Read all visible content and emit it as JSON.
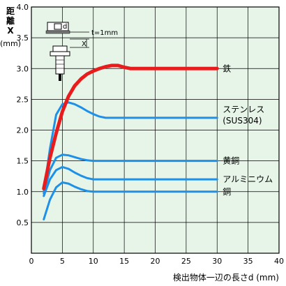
{
  "chart_data": {
    "type": "line",
    "xlabel": "検出物体一辺の長さd (mm)",
    "ylabel": "距離X (mm)",
    "xlim": [
      0,
      40
    ],
    "ylim": [
      0,
      4.0
    ],
    "x_ticks": [
      "0",
      "5",
      "10",
      "15",
      "20",
      "25",
      "30",
      "35",
      "40"
    ],
    "y_ticks": [
      "0.5",
      "1.0",
      "1.5",
      "2.0",
      "2.5",
      "3.0",
      "3.5",
      "4.0"
    ],
    "grid": true,
    "background": "#e6f5e8",
    "series": [
      {
        "name": "鉄",
        "color": "#e81c1c",
        "x": [
          2,
          3,
          4,
          5,
          6,
          7,
          8,
          9,
          10,
          11,
          12,
          13,
          14,
          15,
          16,
          18,
          20,
          25,
          30
        ],
        "y": [
          1.05,
          1.55,
          1.95,
          2.3,
          2.55,
          2.72,
          2.83,
          2.91,
          2.96,
          3.0,
          3.03,
          3.05,
          3.05,
          3.02,
          3.0,
          3.0,
          3.0,
          3.0,
          3.0
        ]
      },
      {
        "name": "ステンレス",
        "name2": "(SUS304)",
        "color": "#1e90e8",
        "x": [
          2,
          3,
          4,
          5,
          6,
          7,
          8,
          9,
          10,
          11,
          12,
          14,
          16,
          20,
          25,
          30
        ],
        "y": [
          1.0,
          1.7,
          2.25,
          2.42,
          2.45,
          2.42,
          2.37,
          2.31,
          2.26,
          2.22,
          2.2,
          2.2,
          2.2,
          2.2,
          2.2,
          2.2
        ]
      },
      {
        "name": "黄銅",
        "color": "#1e90e8",
        "x": [
          2,
          3,
          4,
          5,
          6,
          7,
          8,
          9,
          10,
          12,
          15,
          20,
          25,
          30
        ],
        "y": [
          0.97,
          1.35,
          1.55,
          1.6,
          1.59,
          1.56,
          1.53,
          1.51,
          1.5,
          1.5,
          1.5,
          1.5,
          1.5,
          1.5
        ]
      },
      {
        "name": "アルミニウム",
        "color": "#1e90e8",
        "x": [
          2,
          3,
          4,
          5,
          6,
          7,
          8,
          9,
          10,
          12,
          15,
          20,
          25,
          30
        ],
        "y": [
          0.93,
          1.2,
          1.35,
          1.4,
          1.37,
          1.31,
          1.26,
          1.22,
          1.2,
          1.2,
          1.2,
          1.2,
          1.2,
          1.2
        ]
      },
      {
        "name": "銅",
        "color": "#1e90e8",
        "x": [
          2,
          3,
          4,
          5,
          6,
          7,
          8,
          9,
          10,
          12,
          15,
          20,
          25,
          30
        ],
        "y": [
          0.55,
          0.87,
          1.07,
          1.15,
          1.13,
          1.08,
          1.04,
          1.01,
          1.0,
          1.0,
          1.0,
          1.0,
          1.0,
          1.0
        ]
      }
    ]
  },
  "diagram": {
    "d_label": "d",
    "t_label": "t=1mm",
    "x_label": "X"
  }
}
